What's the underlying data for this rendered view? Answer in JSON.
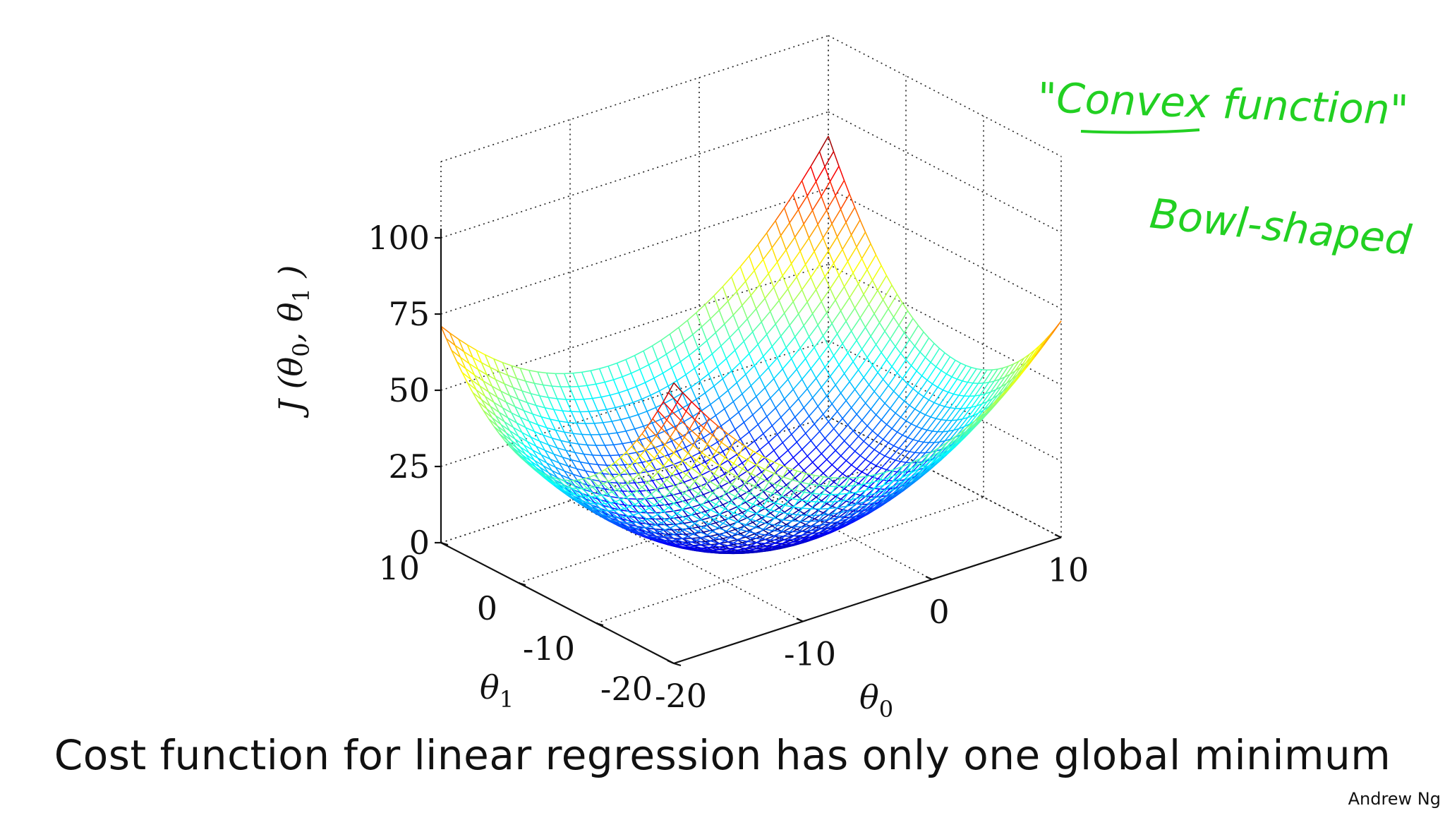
{
  "caption": "Cost function for linear regression has only one global minimum",
  "credit": "Andrew Ng",
  "annotations": {
    "convex": "\"Convex function\"",
    "bowl": "Bowl-shaped"
  },
  "colors": {
    "annotation": "#22d022",
    "mesh_low": "#00008f",
    "mesh_high": "#ff0000"
  },
  "chart_data": {
    "type": "surface",
    "title": "",
    "xlabel": "θ0",
    "ylabel": "θ1",
    "zlabel": "J(θ0,θ1)",
    "xlim": [
      -20,
      10
    ],
    "ylim": [
      -20,
      10
    ],
    "zlim": [
      0,
      100
    ],
    "x_ticks": [
      "-20",
      "-10",
      "0",
      "10"
    ],
    "y_ticks": [
      "-20",
      "-10",
      "0",
      "10"
    ],
    "z_ticks": [
      "0",
      "25",
      "50",
      "75",
      "100"
    ],
    "colormap": "jet",
    "grid": true,
    "surface": {
      "form": "bowl",
      "minimum": {
        "theta0": -5,
        "theta1": -5,
        "J": 0
      },
      "corners": [
        {
          "theta0": -20,
          "theta1": -20,
          "J": 70
        },
        {
          "theta0": 10,
          "theta1": -20,
          "J": 71
        },
        {
          "theta0": -20,
          "theta1": 10,
          "J": 48
        },
        {
          "theta0": 10,
          "theta1": 10,
          "J": 93
        }
      ]
    }
  }
}
